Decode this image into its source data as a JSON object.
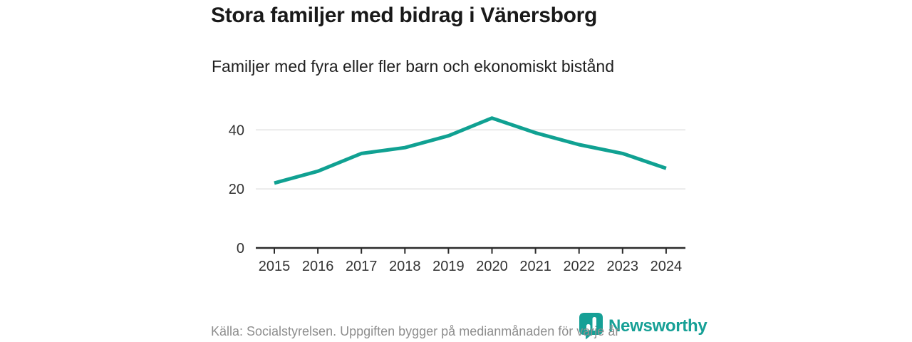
{
  "title": "Stora familjer med bidrag i Vänersborg",
  "subtitle": "Familjer med fyra eller fler barn och ekonomiskt bistånd",
  "footer": {
    "source_text": "Källa: Socialstyrelsen. Uppgiften bygger på medianmånaden för varje år"
  },
  "branding": {
    "logo_text": "Newsworthy",
    "logo_icon": "newsworthy-pin-icon",
    "brand_color": "#16A096"
  },
  "colors": {
    "line": "#10A192",
    "grid": "#e3e3e3",
    "axis": "#2b2b2b",
    "tick_label": "#333333",
    "title_text": "#191919",
    "footer_text": "#8e8e8e"
  },
  "chart_data": {
    "type": "line",
    "title": "Stora familjer med bidrag i Vänersborg",
    "subtitle": "Familjer med fyra eller fler barn och ekonomiskt bistånd",
    "categories": [
      2015,
      2016,
      2017,
      2018,
      2019,
      2020,
      2021,
      2022,
      2023,
      2024
    ],
    "series": [
      {
        "name": "Familjer med fyra eller fler barn och ekonomiskt bistånd",
        "values": [
          22,
          26,
          32,
          34,
          38,
          44,
          39,
          35,
          32,
          27
        ]
      }
    ],
    "xlabel": "",
    "ylabel": "",
    "yticks": [
      0,
      20,
      40
    ],
    "ylim": [
      0,
      48
    ],
    "grid": "horizontal-light",
    "legend": "none"
  }
}
